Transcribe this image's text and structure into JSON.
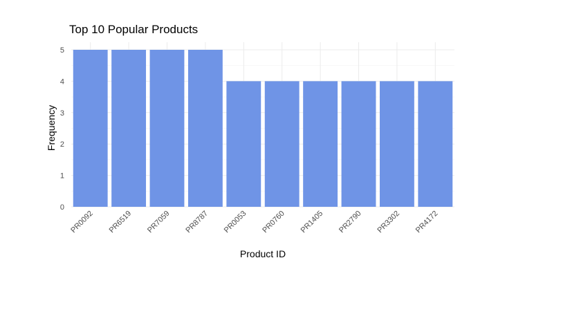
{
  "chart_data": {
    "type": "bar",
    "title": "Top 10 Popular Products",
    "xlabel": "Product ID",
    "ylabel": "Frequency",
    "categories": [
      "PR0092",
      "PR6519",
      "PR7059",
      "PR8787",
      "PR0053",
      "PR0760",
      "PR1405",
      "PR2790",
      "PR3302",
      "PR4172"
    ],
    "values": [
      5,
      5,
      5,
      5,
      4,
      4,
      4,
      4,
      4,
      4
    ],
    "yticks": [
      0,
      1,
      2,
      3,
      4,
      5
    ],
    "ylim": [
      0,
      5.2
    ],
    "grid": true,
    "bar_color": "#6f94e6",
    "theme": "minimal"
  }
}
